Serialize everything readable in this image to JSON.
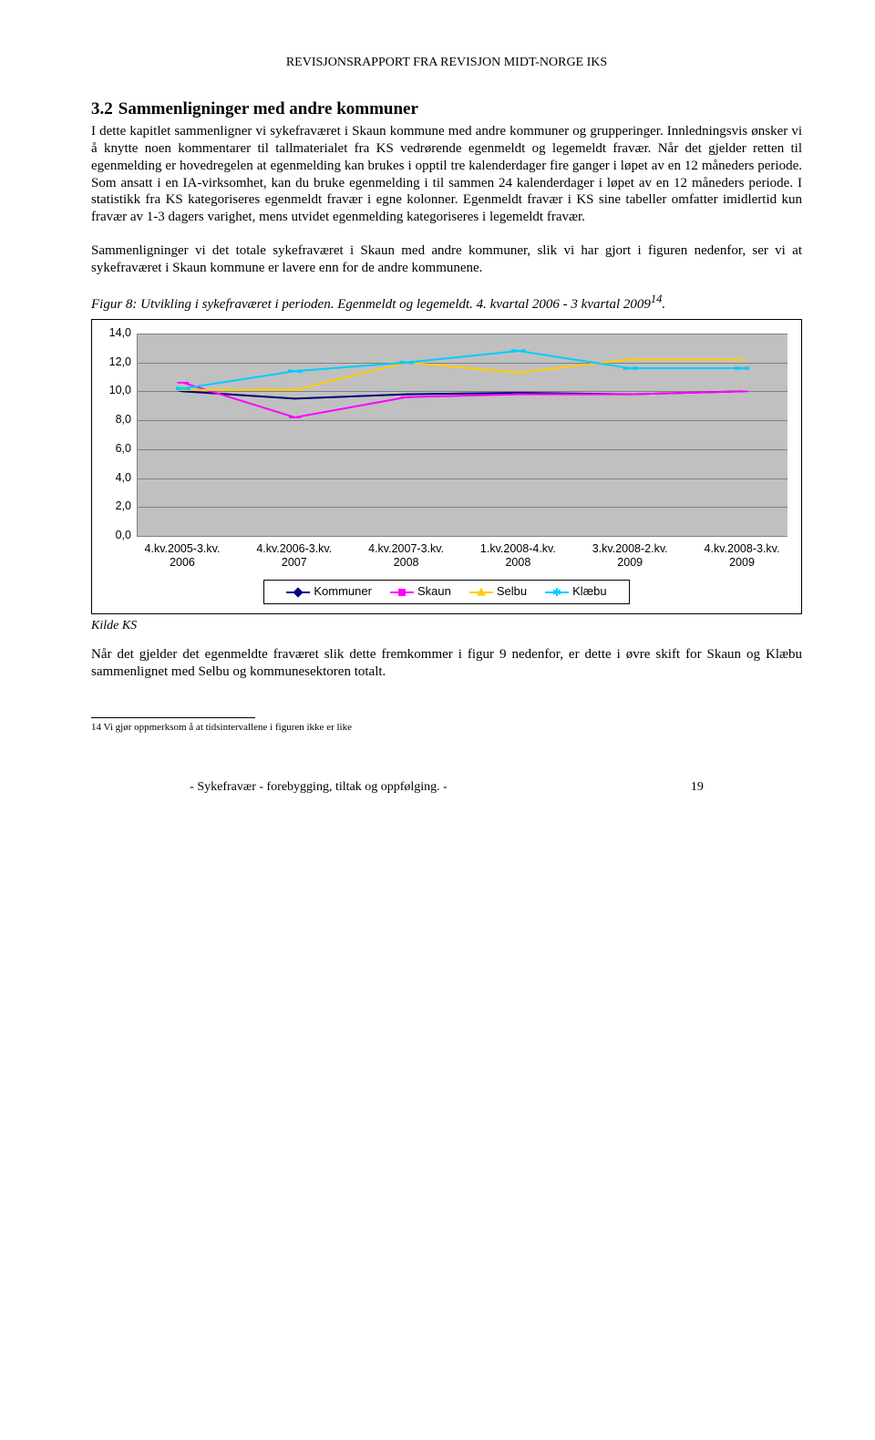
{
  "header": "REVISJONSRAPPORT FRA REVISJON MIDT-NORGE IKS",
  "section_number": "3.2",
  "section_title": "Sammenligninger med andre kommuner",
  "para1": "I dette kapitlet sammenligner vi sykefraværet i Skaun kommune med andre kommuner og grupperinger. Innledningsvis ønsker vi å knytte noen kommentarer til tallmaterialet fra KS vedrørende egenmeldt og legemeldt fravær. Når det gjelder retten til egenmelding er hovedregelen at egenmelding kan brukes i opptil tre kalenderdager fire ganger i løpet av en 12 måneders periode. Som ansatt i en IA-virksomhet, kan du bruke egenmelding i til sammen 24 kalenderdager i løpet av en 12 måneders periode. I statistikk fra KS kategoriseres egenmeldt fravær i egne kolonner. Egenmeldt fravær i KS sine tabeller omfatter imidlertid kun fravær av 1-3 dagers varighet, mens utvidet egenmelding kategoriseres i legemeldt fravær.",
  "para2": "Sammenligninger vi det totale sykefraværet i Skaun med andre kommuner, slik vi har gjort i figuren nedenfor, ser vi at sykefraværet i Skaun kommune er lavere enn for de andre kommunene.",
  "fig_caption_a": "Figur 8: Utvikling i sykefraværet i perioden. Egenmeldt og legemeldt. 4. kvartal 2006 - 3 kvartal 2009",
  "fig_caption_sup": "14",
  "fig_caption_b": ".",
  "kilde": "Kilde KS",
  "para3": "Når det gjelder det egenmeldte fraværet slik dette fremkommer i figur 9 nedenfor, er dette i øvre skift for Skaun og Klæbu sammenlignet med Selbu og kommunesektoren totalt.",
  "footnote": "14 Vi gjør oppmerksom å at tidsintervallene i figuren ikke er like",
  "footer_text": "- Sykefravær - forebygging, tiltak og oppfølging. -",
  "footer_page": "19",
  "chart": {
    "type": "line",
    "ylim": [
      0,
      14
    ],
    "ytick_step": 2,
    "ytick_labels": [
      "0,0",
      "2,0",
      "4,0",
      "6,0",
      "8,0",
      "10,0",
      "12,0",
      "14,0"
    ],
    "categories": [
      "4.kv.2005-3.kv. 2006",
      "4.kv.2006-3.kv. 2007",
      "4.kv.2007-3.kv. 2008",
      "1.kv.2008-4.kv. 2008",
      "3.kv.2008-2.kv. 2009",
      "4.kv.2008-3.kv. 2009"
    ],
    "series": [
      {
        "name": "Kommuner",
        "color": "#000080",
        "marker": "diamond",
        "values": [
          10.0,
          9.5,
          9.8,
          9.9,
          9.8,
          10.0
        ]
      },
      {
        "name": "Skaun",
        "color": "#ff00ff",
        "marker": "square",
        "values": [
          10.6,
          8.2,
          9.6,
          9.8,
          9.8,
          10.0
        ]
      },
      {
        "name": "Selbu",
        "color": "#ffcc00",
        "marker": "triangle",
        "values": [
          10.1,
          10.1,
          12.0,
          11.3,
          12.2,
          12.2
        ]
      },
      {
        "name": "Klæbu",
        "color": "#00ccff",
        "marker": "x",
        "values": [
          10.2,
          11.4,
          12.0,
          12.8,
          11.6,
          11.6
        ]
      }
    ],
    "plot_bg": "#c0c0c0",
    "grid_color": "#808080"
  }
}
